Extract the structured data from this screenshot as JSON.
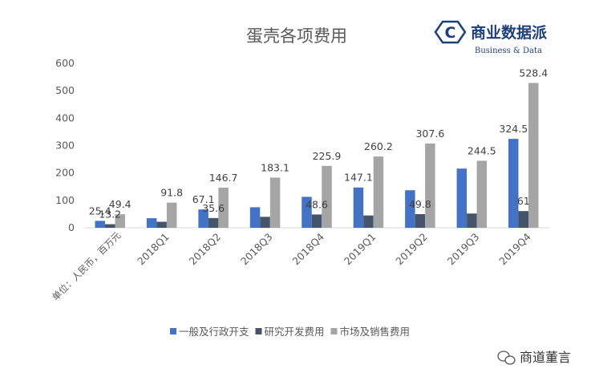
{
  "chart_data": {
    "type": "bar",
    "title": "蛋壳各项费用",
    "unit_label": "单位：人民币，百万元",
    "categories": [
      "",
      "2018Q1",
      "2018Q2",
      "2018Q3",
      "2018Q4",
      "2019Q1",
      "2019Q2",
      "2019Q3",
      "2019Q4"
    ],
    "series": [
      {
        "name": "一般及行政开支",
        "color": "#4472c4",
        "values": [
          25.4,
          35,
          67.1,
          75,
          113,
          147.1,
          137,
          216,
          324.5
        ]
      },
      {
        "name": "研究开发费用",
        "color": "#44546a",
        "values": [
          13.2,
          22,
          35.6,
          40,
          48.6,
          45,
          49.8,
          52,
          61
        ]
      },
      {
        "name": "市场及销售费用",
        "color": "#a5a5a5",
        "values": [
          49.4,
          91.8,
          146.7,
          183.1,
          225.9,
          260.2,
          307.6,
          244.5,
          528.4
        ]
      }
    ],
    "data_labels": [
      {
        "series": 0,
        "index": 0,
        "text": "25.4"
      },
      {
        "series": 0,
        "index": 2,
        "text": "67.1"
      },
      {
        "series": 0,
        "index": 5,
        "text": "147.1"
      },
      {
        "series": 0,
        "index": 8,
        "text": "324.5"
      },
      {
        "series": 1,
        "index": 0,
        "text": "13.2"
      },
      {
        "series": 1,
        "index": 2,
        "text": "35.6"
      },
      {
        "series": 1,
        "index": 4,
        "text": "48.6"
      },
      {
        "series": 1,
        "index": 6,
        "text": "49.8"
      },
      {
        "series": 1,
        "index": 8,
        "text": "61"
      },
      {
        "series": 2,
        "index": 0,
        "text": "49.4"
      },
      {
        "series": 2,
        "index": 1,
        "text": "91.8"
      },
      {
        "series": 2,
        "index": 2,
        "text": "146.7"
      },
      {
        "series": 2,
        "index": 3,
        "text": "183.1"
      },
      {
        "series": 2,
        "index": 4,
        "text": "225.9"
      },
      {
        "series": 2,
        "index": 5,
        "text": "260.2"
      },
      {
        "series": 2,
        "index": 6,
        "text": "307.6"
      },
      {
        "series": 2,
        "index": 7,
        "text": "244.5"
      },
      {
        "series": 2,
        "index": 8,
        "text": "528.4"
      }
    ],
    "ylim": [
      0,
      600
    ],
    "yticks": [
      0,
      100,
      200,
      300,
      400,
      500,
      600
    ],
    "grid": false,
    "legend_position": "bottom"
  },
  "logo": {
    "letter": "C",
    "name": "商业数据派",
    "tagline": "Business & Data",
    "color": "#1f3f7a"
  },
  "watermark": {
    "text": "商道董言",
    "icon": "wechat-icon"
  }
}
